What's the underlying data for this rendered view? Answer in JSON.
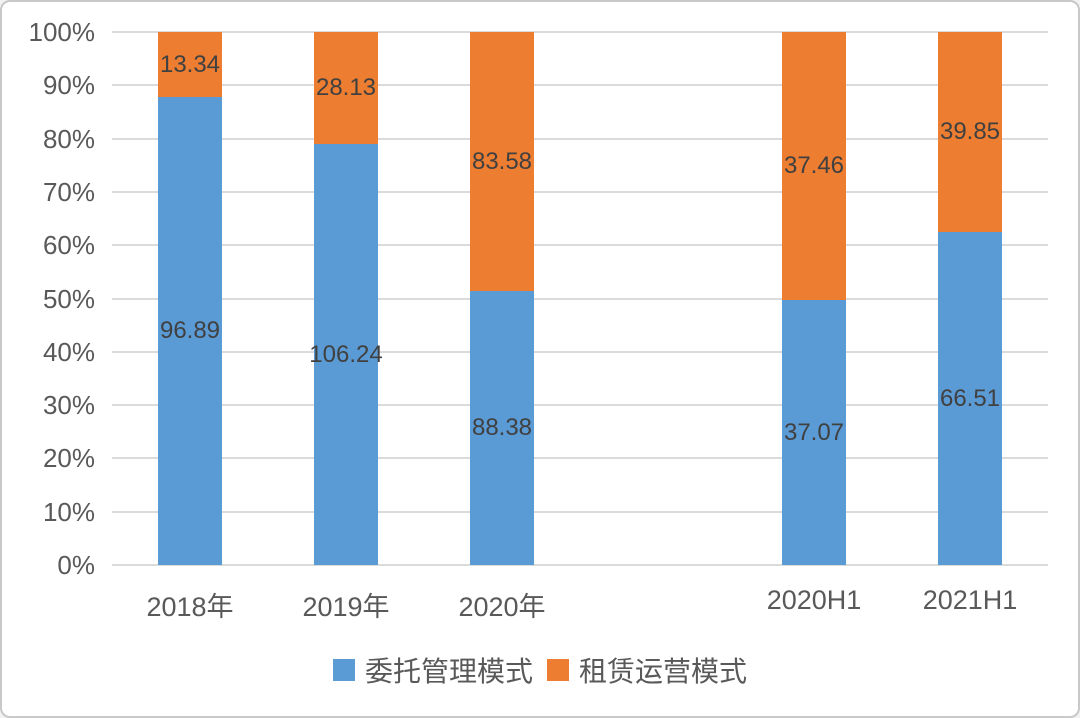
{
  "chart_data": {
    "type": "bar",
    "stacked": true,
    "normalized": "100%-stacked",
    "title": "",
    "xlabel": "",
    "ylabel": "",
    "ylim": [
      0,
      100
    ],
    "grid": true,
    "legend_position": "bottom",
    "y_ticks": [
      "0%",
      "10%",
      "20%",
      "30%",
      "40%",
      "50%",
      "60%",
      "70%",
      "80%",
      "90%",
      "100%"
    ],
    "categories": [
      "2018年",
      "2019年",
      "2020年",
      "",
      "2020H1",
      "2021H1"
    ],
    "series": [
      {
        "name": "委托管理模式",
        "color": "#5B9BD5",
        "values": [
          96.89,
          106.24,
          88.38,
          null,
          37.07,
          66.51
        ]
      },
      {
        "name": "租赁运营模式",
        "color": "#ED7D31",
        "values": [
          13.34,
          28.13,
          83.58,
          null,
          37.46,
          39.85
        ]
      }
    ],
    "data_labels": {
      "委托管理模式": [
        "96.89",
        "106.24",
        "88.38",
        "",
        "37.07",
        "66.51"
      ],
      "租赁运营模式": [
        "13.34",
        "28.13",
        "83.58",
        "",
        "37.46",
        "39.85"
      ]
    },
    "colors": {
      "series_blue": "#5B9BD5",
      "series_orange": "#ED7D31",
      "gridline": "#DBDBDB",
      "axis_text": "#595959",
      "data_label_text": "#404040",
      "card_border": "#C9C9C9",
      "background": "#FFFFFF"
    }
  }
}
